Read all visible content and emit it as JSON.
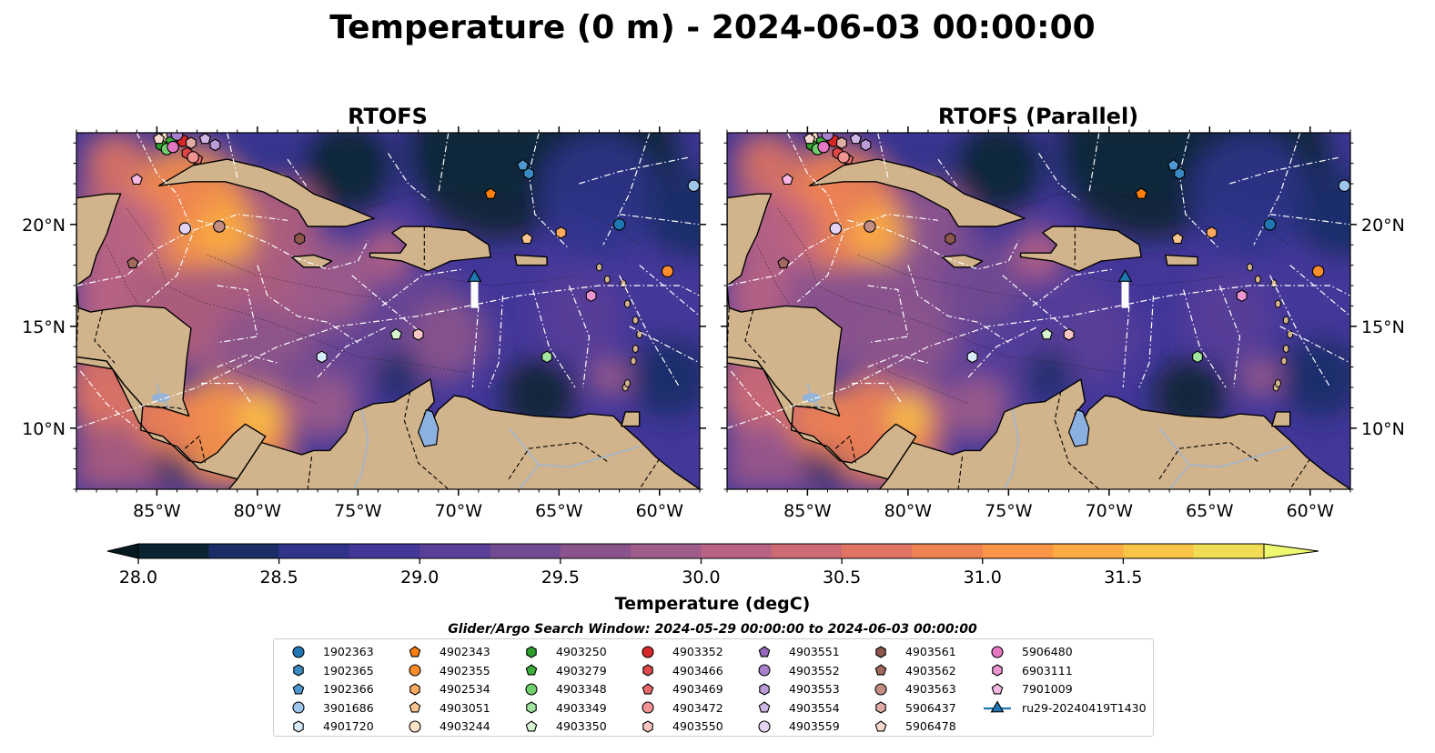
{
  "figure_title": "Temperature (0 m) - 2024-06-03 00:00:00",
  "colors": {
    "land": "#d2b48c",
    "lake": "#8bb1e0",
    "river": "#9fb6cf",
    "glider_track": "#ffffff",
    "glider_marker": "#1f77b4",
    "white_contour": "#ffffff"
  },
  "chart_data": [
    {
      "type": "heatmap",
      "title": "RTOFS",
      "variable": "Sea surface temperature",
      "xlim": [
        -89,
        -58
      ],
      "ylim": [
        7,
        24.5
      ],
      "x_ticks": [
        "85°W",
        "80°W",
        "75°W",
        "70°W",
        "65°W",
        "60°W"
      ],
      "y_ticks": [
        "10°N",
        "15°N",
        "20°N"
      ],
      "y_tick_side": "left",
      "grid": false
    },
    {
      "type": "heatmap",
      "title": "RTOFS (Parallel)",
      "variable": "Sea surface temperature",
      "xlim": [
        -89,
        -58
      ],
      "ylim": [
        7,
        24.5
      ],
      "x_ticks": [
        "85°W",
        "80°W",
        "75°W",
        "70°W",
        "65°W",
        "60°W"
      ],
      "y_ticks": [
        "10°N",
        "15°N",
        "20°N"
      ],
      "y_tick_side": "right",
      "grid": false
    }
  ],
  "colorbar": {
    "label": "Temperature (degC)",
    "min": 28.0,
    "max": 31.5,
    "step": 0.25,
    "extend": "both",
    "tick_labels": [
      "28.0",
      "28.5",
      "29.0",
      "29.5",
      "30.0",
      "30.5",
      "31.0",
      "31.5"
    ],
    "colors": [
      "#0b2431",
      "#1b2d66",
      "#2f348a",
      "#433799",
      "#5a3f98",
      "#724a91",
      "#8a538c",
      "#a05c8a",
      "#b86284",
      "#cd6a74",
      "#e07463",
      "#ef8252",
      "#f89547",
      "#fbab43",
      "#f8c447",
      "#f1dd55"
    ],
    "under_color": "#06181f",
    "over_color": "#eef870"
  },
  "search_window_text": "Glider/Argo Search Window: 2024-05-29 00:00:00 to 2024-06-03 00:00:00",
  "legend": [
    {
      "label": "1902363",
      "color": "#1f77b4",
      "marker": "circle"
    },
    {
      "label": "1902365",
      "color": "#3a8bc4",
      "marker": "hexagon"
    },
    {
      "label": "1902366",
      "color": "#4e98d2",
      "marker": "pentagon"
    },
    {
      "label": "3901686",
      "color": "#9ec5eb",
      "marker": "circle"
    },
    {
      "label": "4901720",
      "color": "#d8ebfb",
      "marker": "hexagon"
    },
    {
      "label": "4902343",
      "color": "#ff7f0e",
      "marker": "pentagon"
    },
    {
      "label": "4902355",
      "color": "#fd8d2a",
      "marker": "circle"
    },
    {
      "label": "4902534",
      "color": "#fdaa60",
      "marker": "hexagon"
    },
    {
      "label": "4903051",
      "color": "#fdc58e",
      "marker": "pentagon"
    },
    {
      "label": "4903244",
      "color": "#fde3c6",
      "marker": "circle"
    },
    {
      "label": "4903250",
      "color": "#2ca02c",
      "marker": "hexagon"
    },
    {
      "label": "4903279",
      "color": "#3aad3a",
      "marker": "pentagon"
    },
    {
      "label": "4903348",
      "color": "#6fcf6f",
      "marker": "circle"
    },
    {
      "label": "4903349",
      "color": "#a2e3a0",
      "marker": "hexagon"
    },
    {
      "label": "4903350",
      "color": "#d6f5d0",
      "marker": "pentagon"
    },
    {
      "label": "4903352",
      "color": "#d62728",
      "marker": "circle"
    },
    {
      "label": "4903466",
      "color": "#e04749",
      "marker": "hexagon"
    },
    {
      "label": "4903469",
      "color": "#e86a6a",
      "marker": "pentagon"
    },
    {
      "label": "4903472",
      "color": "#f29393",
      "marker": "circle"
    },
    {
      "label": "4903550",
      "color": "#fbc6c4",
      "marker": "hexagon"
    },
    {
      "label": "4903551",
      "color": "#9467bd",
      "marker": "pentagon"
    },
    {
      "label": "4903552",
      "color": "#a880cc",
      "marker": "circle"
    },
    {
      "label": "4903553",
      "color": "#bb9ad8",
      "marker": "hexagon"
    },
    {
      "label": "4903554",
      "color": "#ceb5e5",
      "marker": "pentagon"
    },
    {
      "label": "4903559",
      "color": "#e5d3f3",
      "marker": "circle"
    },
    {
      "label": "4903561",
      "color": "#8c564b",
      "marker": "hexagon"
    },
    {
      "label": "4903562",
      "color": "#a26a5e",
      "marker": "pentagon"
    },
    {
      "label": "4903563",
      "color": "#c48d82",
      "marker": "circle"
    },
    {
      "label": "5906437",
      "color": "#e2ada4",
      "marker": "hexagon"
    },
    {
      "label": "5906478",
      "color": "#f8d8cf",
      "marker": "pentagon"
    },
    {
      "label": "5906480",
      "color": "#e377c2",
      "marker": "circle"
    },
    {
      "label": "6903111",
      "color": "#ec95d0",
      "marker": "hexagon"
    },
    {
      "label": "7901009",
      "color": "#f6b8e2",
      "marker": "pentagon"
    },
    {
      "label": "ru29-20240419T1430",
      "color": "#1f77b4",
      "marker": "triangle-line"
    }
  ],
  "floats": [
    {
      "id": "1902363",
      "lon": -62.0,
      "lat": 20.0
    },
    {
      "id": "1902365",
      "lon": -66.5,
      "lat": 22.5
    },
    {
      "id": "1902366",
      "lon": -66.8,
      "lat": 22.9
    },
    {
      "id": "3901686",
      "lon": -58.3,
      "lat": 21.9
    },
    {
      "id": "4901720",
      "lon": -76.8,
      "lat": 13.5
    },
    {
      "id": "4902343",
      "lon": -68.4,
      "lat": 21.5
    },
    {
      "id": "4902355",
      "lon": -59.6,
      "lat": 17.7
    },
    {
      "id": "4902534",
      "lon": -64.9,
      "lat": 19.6
    },
    {
      "id": "4903051",
      "lon": -66.6,
      "lat": 19.3
    },
    {
      "id": "4903244",
      "lon": -84.5,
      "lat": 24.3
    },
    {
      "id": "4903250",
      "lon": -84.8,
      "lat": 23.9
    },
    {
      "id": "4903279",
      "lon": -84.3,
      "lat": 24.1
    },
    {
      "id": "4903348",
      "lon": -84.5,
      "lat": 23.7
    },
    {
      "id": "4903349",
      "lon": -65.6,
      "lat": 13.5
    },
    {
      "id": "4903350",
      "lon": -73.1,
      "lat": 14.6
    },
    {
      "id": "4903352",
      "lon": -83.7,
      "lat": 24.1
    },
    {
      "id": "4903466",
      "lon": -83.5,
      "lat": 23.5
    },
    {
      "id": "4903469",
      "lon": -83.0,
      "lat": 23.2
    },
    {
      "id": "4903472",
      "lon": -83.2,
      "lat": 23.3
    },
    {
      "id": "4903550",
      "lon": -72.0,
      "lat": 14.6
    },
    {
      "id": "4903551",
      "lon": -84.3,
      "lat": 24.5
    },
    {
      "id": "4903552",
      "lon": -84.0,
      "lat": 24.4
    },
    {
      "id": "4903553",
      "lon": -82.1,
      "lat": 23.9
    },
    {
      "id": "4903554",
      "lon": -82.6,
      "lat": 24.2
    },
    {
      "id": "4903559",
      "lon": -83.6,
      "lat": 19.8
    },
    {
      "id": "4903561",
      "lon": -77.9,
      "lat": 19.3
    },
    {
      "id": "4903562",
      "lon": -86.2,
      "lat": 18.1
    },
    {
      "id": "4903563",
      "lon": -81.9,
      "lat": 19.9
    },
    {
      "id": "5906437",
      "lon": -83.3,
      "lat": 24.0
    },
    {
      "id": "5906478",
      "lon": -84.9,
      "lat": 24.2
    },
    {
      "id": "5906480",
      "lon": -84.2,
      "lat": 23.8
    },
    {
      "id": "6903111",
      "lon": -63.4,
      "lat": 16.5
    },
    {
      "id": "7901009",
      "lon": -86.0,
      "lat": 22.2
    }
  ],
  "glider": {
    "id": "ru29-20240419T1430",
    "lon": -69.2,
    "lat_end": 17.3,
    "lat_start": 15.9
  }
}
